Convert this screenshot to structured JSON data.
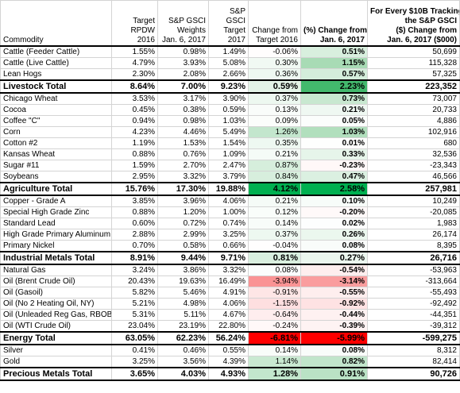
{
  "table": {
    "header": [
      [
        "Commodity"
      ],
      [
        "Target",
        "RPDW",
        "2016"
      ],
      [
        "S&P GSCI",
        "Weights",
        "Jan. 6, 2017"
      ],
      [
        "S&P",
        "GSCI",
        "Target",
        "2017"
      ],
      [
        "Change from",
        "Target 2016"
      ],
      [
        "(%) Change from",
        "Jan. 6, 2017"
      ],
      [
        "For Every $10B Tracking",
        "the S&P GSCI",
        "($) Change from",
        "Jan. 6, 2017 ($000)"
      ]
    ],
    "groups": [
      {
        "items": [
          [
            "Cattle (Feeder Cattle)",
            "1.55%",
            "0.98%",
            "1.49%",
            "-0.06%",
            "0.51%",
            "50,699"
          ],
          [
            "Cattle (Live Cattle)",
            "4.79%",
            "3.93%",
            "5.08%",
            "0.30%",
            "1.15%",
            "115,328"
          ],
          [
            "Lean Hogs",
            "2.30%",
            "2.08%",
            "2.66%",
            "0.36%",
            "0.57%",
            "57,325"
          ]
        ],
        "total": [
          "Livestock Total",
          "8.64%",
          "7.00%",
          "9.23%",
          "0.59%",
          "2.23%",
          "223,352"
        ]
      },
      {
        "items": [
          [
            "Chicago Wheat",
            "3.53%",
            "3.17%",
            "3.90%",
            "0.37%",
            "0.73%",
            "73,007"
          ],
          [
            "Cocoa",
            "0.45%",
            "0.38%",
            "0.59%",
            "0.13%",
            "0.21%",
            "20,733"
          ],
          [
            "Coffee \"C\"",
            "0.94%",
            "0.98%",
            "1.03%",
            "0.09%",
            "0.05%",
            "4,886"
          ],
          [
            "Corn",
            "4.23%",
            "4.46%",
            "5.49%",
            "1.26%",
            "1.03%",
            "102,916"
          ],
          [
            "Cotton #2",
            "1.19%",
            "1.53%",
            "1.54%",
            "0.35%",
            "0.01%",
            "680"
          ],
          [
            "Kansas Wheat",
            "0.88%",
            "0.76%",
            "1.09%",
            "0.21%",
            "0.33%",
            "32,536"
          ],
          [
            "Sugar #11",
            "1.59%",
            "2.70%",
            "2.47%",
            "0.87%",
            "-0.23%",
            "-23,343"
          ],
          [
            "Soybeans",
            "2.95%",
            "3.32%",
            "3.79%",
            "0.84%",
            "0.47%",
            "46,566"
          ]
        ],
        "total": [
          "Agriculture Total",
          "15.76%",
          "17.30%",
          "19.88%",
          "4.12%",
          "2.58%",
          "257,981"
        ]
      },
      {
        "items": [
          [
            "Copper - Grade A",
            "3.85%",
            "3.96%",
            "4.06%",
            "0.21%",
            "0.10%",
            "10,249"
          ],
          [
            "Special High Grade Zinc",
            "0.88%",
            "1.20%",
            "1.00%",
            "0.12%",
            "-0.20%",
            "-20,085"
          ],
          [
            "Standard Lead",
            "0.60%",
            "0.72%",
            "0.74%",
            "0.14%",
            "0.02%",
            "1,983"
          ],
          [
            "High Grade Primary Aluminum",
            "2.88%",
            "2.99%",
            "3.25%",
            "0.37%",
            "0.26%",
            "26,174"
          ],
          [
            "Primary Nickel",
            "0.70%",
            "0.58%",
            "0.66%",
            "-0.04%",
            "0.08%",
            "8,395"
          ]
        ],
        "total": [
          "Industrial Metals Total",
          "8.91%",
          "9.44%",
          "9.71%",
          "0.81%",
          "0.27%",
          "26,716"
        ]
      },
      {
        "items": [
          [
            "Natural Gas",
            "3.24%",
            "3.86%",
            "3.32%",
            "0.08%",
            "-0.54%",
            "-53,963"
          ],
          [
            "Oil (Brent Crude Oil)",
            "20.43%",
            "19.63%",
            "16.49%",
            "-3.94%",
            "-3.14%",
            "-313,664"
          ],
          [
            "Oil (Gasoil)",
            "5.82%",
            "5.46%",
            "4.91%",
            "-0.91%",
            "-0.55%",
            "-55,493"
          ],
          [
            "Oil (No 2 Heating Oil, NY)",
            "5.21%",
            "4.98%",
            "4.06%",
            "-1.15%",
            "-0.92%",
            "-92,492"
          ],
          [
            "Oil (Unleaded Reg Gas, RBOB)",
            "5.31%",
            "5.11%",
            "4.67%",
            "-0.64%",
            "-0.44%",
            "-44,351"
          ],
          [
            "Oil (WTI Crude Oil)",
            "23.04%",
            "23.19%",
            "22.80%",
            "-0.24%",
            "-0.39%",
            "-39,312"
          ]
        ],
        "total": [
          "Energy Total",
          "63.05%",
          "62.23%",
          "56.24%",
          "-6.81%",
          "-5.99%",
          "-599,275"
        ]
      },
      {
        "items": [
          [
            "Silver",
            "0.41%",
            "0.46%",
            "0.55%",
            "0.14%",
            "0.08%",
            "8,312"
          ],
          [
            "Gold",
            "3.25%",
            "3.56%",
            "4.39%",
            "1.14%",
            "0.82%",
            "82,414"
          ]
        ],
        "total": [
          "Precious Metals Total",
          "3.65%",
          "4.03%",
          "4.93%",
          "1.28%",
          "0.91%",
          "90,726"
        ]
      }
    ]
  }
}
